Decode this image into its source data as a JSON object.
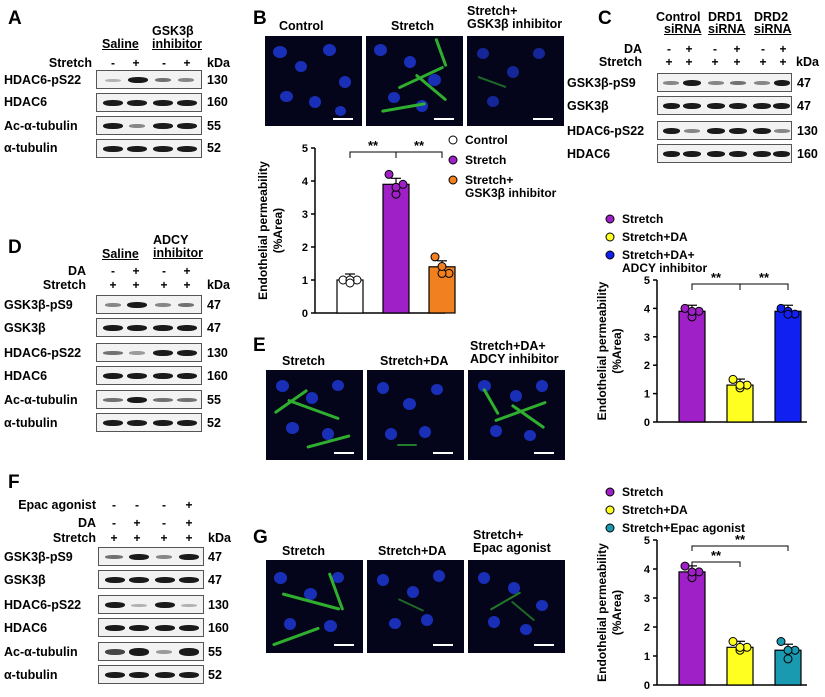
{
  "panel_letters": {
    "a": "A",
    "b": "B",
    "c": "C",
    "d": "D",
    "e": "E",
    "f": "F",
    "g": "G"
  },
  "kda": "kDa",
  "panelA": {
    "group1": "Saline",
    "group2": "GSK3β",
    "group2b": "inhibitor",
    "stretch_label": "Stretch",
    "signs": [
      "-",
      "+",
      "-",
      "+"
    ],
    "rows": [
      {
        "label": "HDAC6-pS22",
        "kda": "130"
      },
      {
        "label": "HDAC6",
        "kda": "160"
      },
      {
        "label": "Ac-α-tubulin",
        "kda": "55"
      },
      {
        "label": "α-tubulin",
        "kda": "52"
      }
    ]
  },
  "panelB": {
    "titles": [
      "Control",
      "Stretch",
      "Stretch+",
      "GSK3β inhibitor"
    ]
  },
  "panelC": {
    "groups": [
      [
        "Control",
        "siRNA"
      ],
      [
        "DRD1",
        "siRNA"
      ],
      [
        "DRD2",
        "siRNA"
      ]
    ],
    "da_label": "DA",
    "stretch_label": "Stretch",
    "da_signs": [
      "-",
      "+",
      "-",
      "+",
      "-",
      "+"
    ],
    "stretch_signs": [
      "+",
      "+",
      "+",
      "+",
      "+",
      "+"
    ],
    "rows": [
      {
        "label": "GSK3β-pS9",
        "kda": "47"
      },
      {
        "label": "GSK3β",
        "kda": "47"
      },
      {
        "label": "HDAC6-pS22",
        "kda": "130"
      },
      {
        "label": "HDAC6",
        "kda": "160"
      }
    ]
  },
  "panelD": {
    "group1": "Saline",
    "group2": "ADCY",
    "group2b": "inhibitor",
    "da_label": "DA",
    "stretch_label": "Stretch",
    "da_signs": [
      "-",
      "+",
      "-",
      "+"
    ],
    "stretch_signs": [
      "+",
      "+",
      "+",
      "+"
    ],
    "rows": [
      {
        "label": "GSK3β-pS9",
        "kda": "47"
      },
      {
        "label": "GSK3β",
        "kda": "47"
      },
      {
        "label": "HDAC6-pS22",
        "kda": "130"
      },
      {
        "label": "HDAC6",
        "kda": "160"
      },
      {
        "label": "Ac-α-tubulin",
        "kda": "55"
      },
      {
        "label": "α-tubulin",
        "kda": "52"
      }
    ]
  },
  "panelE": {
    "titles": [
      "Stretch",
      "Stretch+DA",
      "Stretch+DA+",
      "ADCY inhibitor"
    ]
  },
  "panelF": {
    "epac_label": "Epac agonist",
    "da_label": "DA",
    "stretch_label": "Stretch",
    "epac_signs": [
      "-",
      "-",
      "-",
      "+"
    ],
    "da_signs": [
      "-",
      "+",
      "-",
      "+"
    ],
    "stretch_signs": [
      "+",
      "+",
      "+",
      "+"
    ],
    "rows": [
      {
        "label": "GSK3β-pS9",
        "kda": "47"
      },
      {
        "label": "GSK3β",
        "kda": "47"
      },
      {
        "label": "HDAC6-pS22",
        "kda": "130"
      },
      {
        "label": "HDAC6",
        "kda": "160"
      },
      {
        "label": "Ac-α-tubulin",
        "kda": "55"
      },
      {
        "label": "α-tubulin",
        "kda": "52"
      }
    ]
  },
  "panelG": {
    "titles": [
      "Stretch",
      "Stretch+DA",
      "Stretch+",
      "Epac agonist"
    ]
  },
  "chart_data": [
    {
      "type": "bar",
      "panel": "B",
      "categories": [
        "Control",
        "Stretch",
        "Stretch+ GSK3β inhibitor"
      ],
      "values": [
        1.0,
        3.9,
        1.4
      ],
      "points": [
        [
          1,
          1,
          1,
          1
        ],
        [
          4.2,
          3.9,
          3.6,
          3.9
        ],
        [
          1.7,
          1.2,
          1.2,
          1.5
        ]
      ],
      "colors": [
        "#ffffff",
        "#a020c8",
        "#f08020"
      ],
      "legend": [
        "Control",
        "Stretch",
        "Stretch+",
        "GSK3β inhibitor"
      ],
      "ylabel": "Endothelial permeability",
      "ylabel2": "(%Area)",
      "ylim": [
        0,
        5
      ],
      "ticks": [
        "0",
        "1",
        "2",
        "3",
        "4",
        "5"
      ],
      "sig": [
        "**",
        "**"
      ]
    },
    {
      "type": "bar",
      "panel": "C/E",
      "categories": [
        "Stretch",
        "Stretch+DA",
        "Stretch+DA+ ADCY inhibitor"
      ],
      "values": [
        3.9,
        1.3,
        3.9
      ],
      "points": [
        [
          4.0,
          3.9,
          3.7,
          4.0
        ],
        [
          1.5,
          1.3,
          1.2,
          1.4
        ],
        [
          4.0,
          3.8,
          3.9,
          3.9
        ]
      ],
      "colors": [
        "#a020c8",
        "#ffff20",
        "#1020f0"
      ],
      "legend": [
        "Stretch",
        "Stretch+DA",
        "Stretch+DA+",
        "ADCY inhibitor"
      ],
      "ylabel": "Endothelial permeability",
      "ylabel2": "(%Area)",
      "ylim": [
        0,
        5
      ],
      "ticks": [
        "0",
        "1",
        "2",
        "3",
        "4",
        "5"
      ],
      "sig": [
        "**",
        "**"
      ]
    },
    {
      "type": "bar",
      "panel": "G",
      "categories": [
        "Stretch",
        "Stretch+DA",
        "Stretch+Epac agonist"
      ],
      "values": [
        3.9,
        1.3,
        1.2
      ],
      "points": [
        [
          4.1,
          3.9,
          3.7,
          4.0
        ],
        [
          1.5,
          1.3,
          1.2,
          1.4
        ],
        [
          1.5,
          1.2,
          0.9,
          1.3
        ]
      ],
      "colors": [
        "#a020c8",
        "#ffff20",
        "#1a9ab0"
      ],
      "legend": [
        "Stretch",
        "Stretch+DA",
        "Stretch+Epac agonist"
      ],
      "ylabel": "Endothelial permeability",
      "ylabel2": "(%Area)",
      "ylim": [
        0,
        5
      ],
      "ticks": [
        "0",
        "1",
        "2",
        "3",
        "4",
        "5"
      ],
      "sig": [
        "**",
        "**"
      ]
    }
  ]
}
